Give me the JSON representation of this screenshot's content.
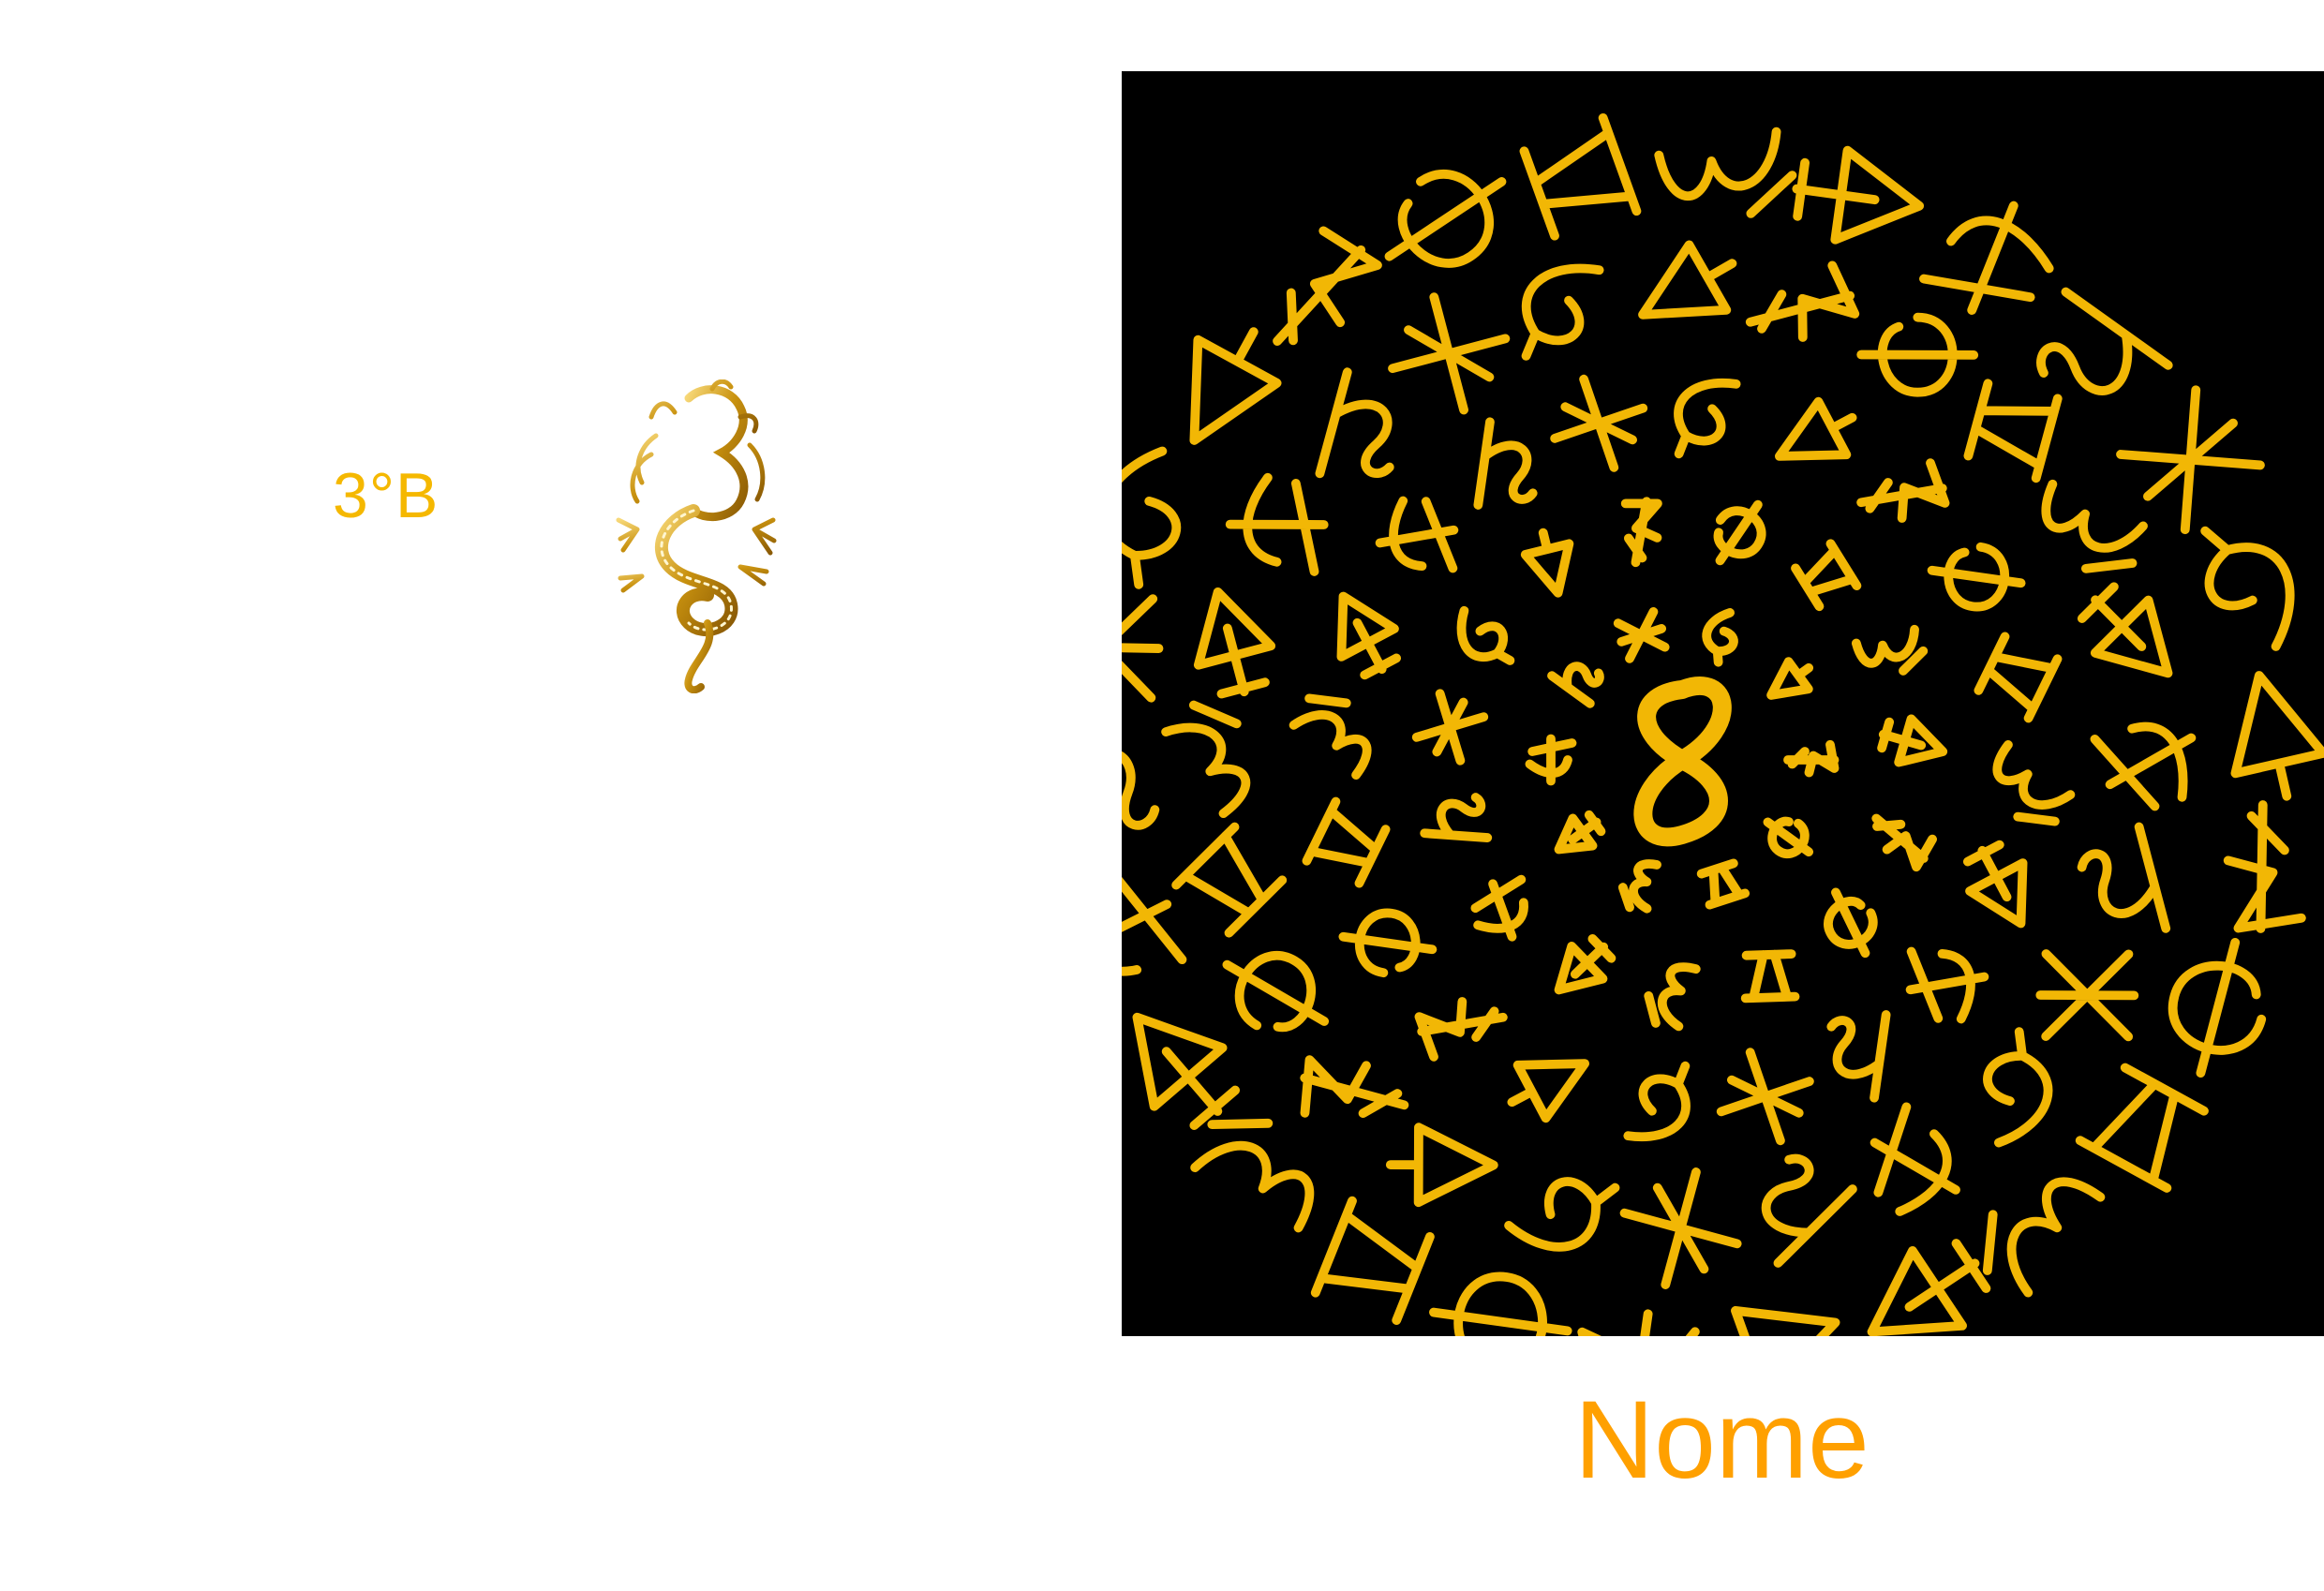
{
  "page": {
    "class_label": "3°B",
    "name_label": "Nome"
  },
  "images": {
    "dragon": "gold-dragon-emblem",
    "artwork": "golden-glyph-spiral-on-black"
  },
  "colors": {
    "gold": "#f5b800",
    "name_orange": "#ffa000",
    "glyph_gold": "#f2b705",
    "panel_black": "#000000",
    "background": "#ffffff"
  }
}
